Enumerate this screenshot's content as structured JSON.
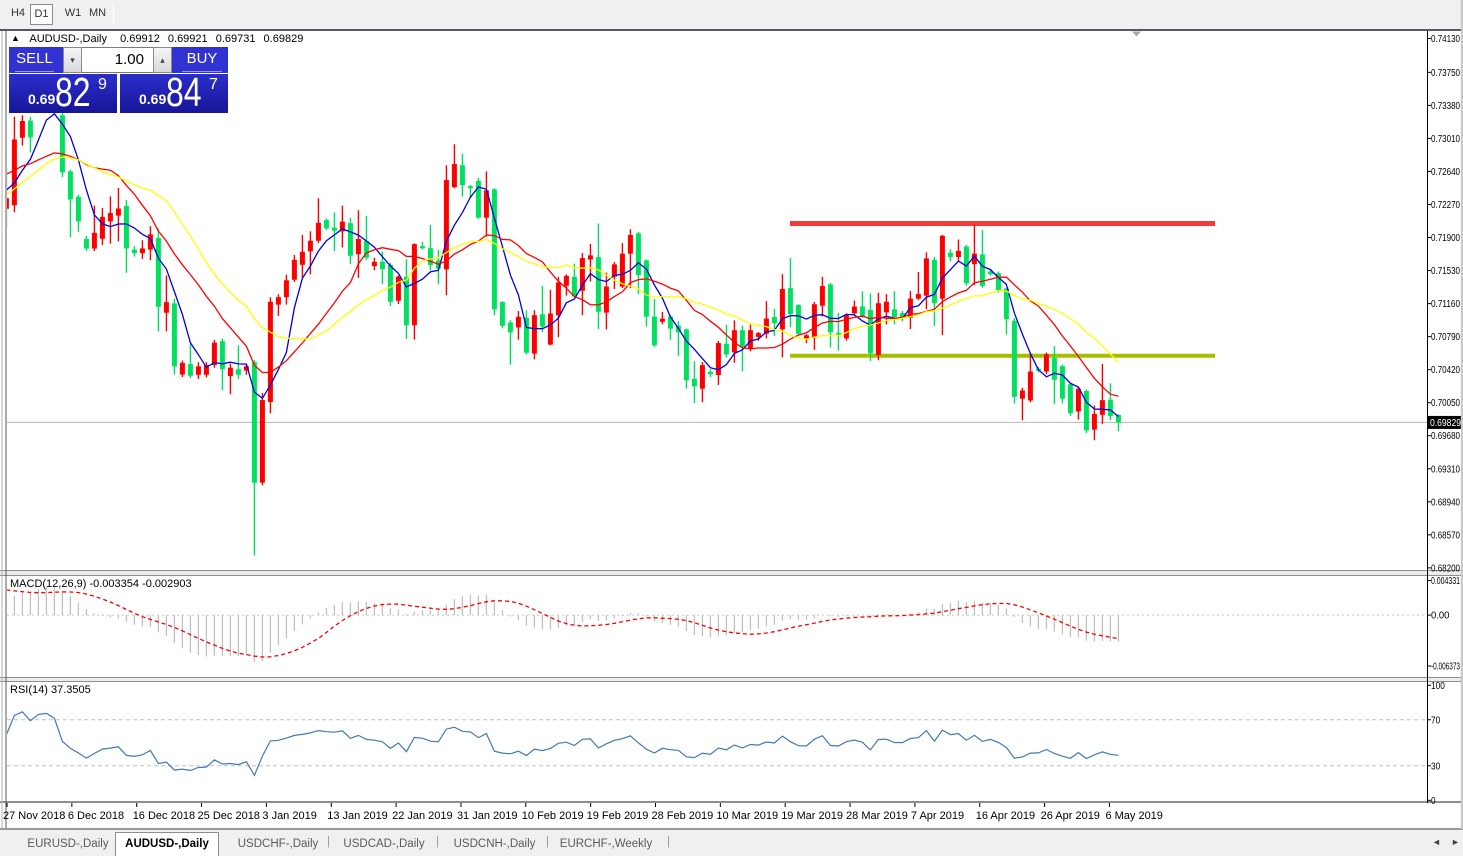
{
  "toolbar": {
    "periods": [
      "H4",
      "D1",
      "W1",
      "MN"
    ],
    "active_period": "D1"
  },
  "symbol_header": {
    "arrow": "▲",
    "title": "AUDUSD-,Daily",
    "open": "0.69912",
    "high": "0.69921",
    "low": "0.69731",
    "close": "0.69829"
  },
  "trade_panel": {
    "sell_label": "SELL",
    "buy_label": "BUY",
    "volume": "1.00",
    "volume_down_arrow": "▾",
    "volume_up_arrow": "▴",
    "sell_price_prefix": "0.69",
    "sell_price_big": "82",
    "sell_price_sup": "9",
    "buy_price_prefix": "0.69",
    "buy_price_big": "84",
    "buy_price_sup": "7"
  },
  "price_axis": {
    "ticks": [
      "0.74130",
      "0.73750",
      "0.73380",
      "0.73010",
      "0.72640",
      "0.72270",
      "0.71900",
      "0.71530",
      "0.71160",
      "0.70790",
      "0.70420",
      "0.70050",
      "0.69680",
      "0.69310",
      "0.68940",
      "0.68570",
      "0.68200"
    ],
    "current_price": "0.69829"
  },
  "date_axis": {
    "labels": [
      "27 Nov 2018",
      "6 Dec 2018",
      "16 Dec 2018",
      "25 Dec 2018",
      "3 Jan 2019",
      "13 Jan 2019",
      "22 Jan 2019",
      "31 Jan 2019",
      "10 Feb 2019",
      "19 Feb 2019",
      "28 Feb 2019",
      "10 Mar 2019",
      "19 Mar 2019",
      "28 Mar 2019",
      "7 Apr 2019",
      "16 Apr 2019",
      "26 Apr 2019",
      "6 May 2019"
    ]
  },
  "indicators": {
    "macd": {
      "label": "MACD(12,26,9)",
      "values": "-0.003354 -0.002903",
      "ticks": [
        "0.004331",
        "0.00",
        "-0.006373"
      ]
    },
    "rsi": {
      "label": "RSI(14)",
      "value": "37.3505",
      "ticks": [
        "100",
        "70",
        "30",
        "0"
      ]
    }
  },
  "tabs": {
    "items": [
      "EURUSD-,Daily",
      "AUDUSD-,Daily",
      "USDCHF-,Daily",
      "USDCAD-,Daily",
      "USDCNH-,Daily",
      "EURCHF-,Weekly"
    ],
    "active": "AUDUSD-,Daily",
    "separator": "|",
    "scroll_left": "◄",
    "scroll_right": "►"
  },
  "chart_data": {
    "type": "candlestick",
    "title": "AUDUSD-,Daily",
    "ohlc_columns": [
      "open",
      "high",
      "low",
      "close"
    ],
    "ohlc": [
      [
        0.72222,
        0.72684,
        0.72016,
        0.7234
      ],
      [
        0.72261,
        0.73253,
        0.72183,
        0.72998
      ],
      [
        0.73018,
        0.73268,
        0.7293,
        0.73205
      ],
      [
        0.7321,
        0.73253,
        0.72852,
        0.73022
      ],
      [
        0.7332,
        0.7342,
        0.7331,
        0.7339
      ],
      [
        0.7339,
        0.735,
        0.7336,
        0.7346
      ],
      [
        0.7346,
        0.735,
        0.7333,
        0.7335
      ],
      [
        0.73269,
        0.7335,
        0.72577,
        0.72631
      ],
      [
        0.72641,
        0.72661,
        0.71904,
        0.72326
      ],
      [
        0.72356,
        0.7238,
        0.71962,
        0.7208
      ],
      [
        0.71884,
        0.71917,
        0.71749,
        0.71776
      ],
      [
        0.71776,
        0.72258,
        0.71749,
        0.71953
      ],
      [
        0.71886,
        0.72232,
        0.71815,
        0.72131
      ],
      [
        0.72081,
        0.72361,
        0.71831,
        0.72174
      ],
      [
        0.72145,
        0.72456,
        0.71857,
        0.72225
      ],
      [
        0.72253,
        0.7232,
        0.71504,
        0.71778
      ],
      [
        0.71765,
        0.71804,
        0.71686,
        0.71725
      ],
      [
        0.71725,
        0.7187,
        0.7166,
        0.71778
      ],
      [
        0.71765,
        0.72027,
        0.71646,
        0.71935
      ],
      [
        0.71896,
        0.72,
        0.70848,
        0.71124
      ],
      [
        0.71058,
        0.71477,
        0.70848,
        0.71176
      ],
      [
        0.71163,
        0.71216,
        0.70365,
        0.70457
      ],
      [
        0.70365,
        0.70522,
        0.70338,
        0.70496
      ],
      [
        0.70482,
        0.70705,
        0.70327,
        0.70351
      ],
      [
        0.70363,
        0.70504,
        0.70316,
        0.70457
      ],
      [
        0.70363,
        0.70504,
        0.70332,
        0.70472
      ],
      [
        0.70472,
        0.70752,
        0.70442,
        0.70723
      ],
      [
        0.70739,
        0.7077,
        0.70191,
        0.70425
      ],
      [
        0.70348,
        0.70489,
        0.70144,
        0.70442
      ],
      [
        0.70425,
        0.70692,
        0.70316,
        0.70363
      ],
      [
        0.7041,
        0.70488,
        0.70363,
        0.70457
      ],
      [
        0.70504,
        0.70529,
        0.68338,
        0.69155
      ],
      [
        0.69155,
        0.70159,
        0.69124,
        0.7008
      ],
      [
        0.70058,
        0.71232,
        0.69931,
        0.7118
      ],
      [
        0.71149,
        0.71264,
        0.71022,
        0.71232
      ],
      [
        0.71232,
        0.71484,
        0.71149,
        0.71421
      ],
      [
        0.71427,
        0.71705,
        0.71402,
        0.71651
      ],
      [
        0.71594,
        0.71928,
        0.71444,
        0.7174
      ],
      [
        0.71746,
        0.7197,
        0.71487,
        0.71864
      ],
      [
        0.71864,
        0.7234,
        0.71838,
        0.72064
      ],
      [
        0.72096,
        0.72113,
        0.71984,
        0.72002
      ],
      [
        0.72011,
        0.72182,
        0.71747,
        0.71977
      ],
      [
        0.71969,
        0.72257,
        0.71789,
        0.72078
      ],
      [
        0.72061,
        0.7212,
        0.71602,
        0.71696
      ],
      [
        0.71713,
        0.72206,
        0.71449,
        0.71883
      ],
      [
        0.71862,
        0.72144,
        0.7165,
        0.71674
      ],
      [
        0.7158,
        0.71674,
        0.71533,
        0.71628
      ],
      [
        0.71628,
        0.71745,
        0.71379,
        0.71545
      ],
      [
        0.71592,
        0.71615,
        0.71133,
        0.7118
      ],
      [
        0.71192,
        0.71474,
        0.71156,
        0.71463
      ],
      [
        0.71461,
        0.71656,
        0.70765,
        0.70917
      ],
      [
        0.70917,
        0.71835,
        0.70756,
        0.71826
      ],
      [
        0.71804,
        0.71854,
        0.71764,
        0.7178
      ],
      [
        0.71781,
        0.7204,
        0.71529,
        0.7159
      ],
      [
        0.71642,
        0.7176,
        0.71376,
        0.71553
      ],
      [
        0.71543,
        0.72709,
        0.71254,
        0.72544
      ],
      [
        0.72464,
        0.72945,
        0.72452,
        0.72723
      ],
      [
        0.7271,
        0.7284,
        0.72357,
        0.72487
      ],
      [
        0.72475,
        0.72488,
        0.72345,
        0.72452
      ],
      [
        0.72534,
        0.72569,
        0.7211,
        0.72122
      ],
      [
        0.72122,
        0.7264,
        0.71909,
        0.72428
      ],
      [
        0.7244,
        0.72452,
        0.7103,
        0.71095
      ],
      [
        0.71177,
        0.71186,
        0.70884,
        0.70911
      ],
      [
        0.70948,
        0.70975,
        0.70475,
        0.70838
      ],
      [
        0.70893,
        0.71076,
        0.70756,
        0.71012
      ],
      [
        0.71003,
        0.71085,
        0.70591,
        0.7061
      ],
      [
        0.706,
        0.71085,
        0.70536,
        0.7103
      ],
      [
        0.7104,
        0.71359,
        0.70838,
        0.70902
      ],
      [
        0.70701,
        0.71313,
        0.70692,
        0.71049
      ],
      [
        0.7103,
        0.7146,
        0.70784,
        0.71396
      ],
      [
        0.71359,
        0.71488,
        0.71249,
        0.7147
      ],
      [
        0.7146,
        0.71607,
        0.71231,
        0.7124
      ],
      [
        0.71304,
        0.71725,
        0.7103,
        0.7167
      ],
      [
        0.71654,
        0.71829,
        0.71407,
        0.717
      ],
      [
        0.71681,
        0.72057,
        0.70874,
        0.71068
      ],
      [
        0.71059,
        0.71507,
        0.7087,
        0.71351
      ],
      [
        0.71461,
        0.71625,
        0.71323,
        0.71599
      ],
      [
        0.71351,
        0.71837,
        0.71333,
        0.71719
      ],
      [
        0.71719,
        0.71993,
        0.71333,
        0.71929
      ],
      [
        0.71947,
        0.71965,
        0.71266,
        0.7148
      ],
      [
        0.71644,
        0.71654,
        0.70903,
        0.71013
      ],
      [
        0.71015,
        0.71211,
        0.70675,
        0.70693
      ],
      [
        0.70956,
        0.71067,
        0.7093,
        0.7099
      ],
      [
        0.71015,
        0.71032,
        0.70753,
        0.7088
      ],
      [
        0.70913,
        0.70965,
        0.70574,
        0.70837
      ],
      [
        0.70871,
        0.7088,
        0.70207,
        0.70301
      ],
      [
        0.70318,
        0.70514,
        0.70046,
        0.70233
      ],
      [
        0.70207,
        0.70505,
        0.70055,
        0.70471
      ],
      [
        0.70395,
        0.70429,
        0.70334,
        0.70369
      ],
      [
        0.7036,
        0.70741,
        0.70249,
        0.70718
      ],
      [
        0.7071,
        0.70922,
        0.70556,
        0.7059
      ],
      [
        0.70614,
        0.70973,
        0.70497,
        0.70862
      ],
      [
        0.70862,
        0.70913,
        0.70403,
        0.70675
      ],
      [
        0.70658,
        0.70939,
        0.70625,
        0.70862
      ],
      [
        0.70787,
        0.70842,
        0.70744,
        0.7083
      ],
      [
        0.70822,
        0.71187,
        0.7077,
        0.70992
      ],
      [
        0.71009,
        0.71102,
        0.70796,
        0.7094
      ],
      [
        0.70872,
        0.7149,
        0.70557,
        0.71323
      ],
      [
        0.71334,
        0.7167,
        0.70898,
        0.71042
      ],
      [
        0.71144,
        0.71153,
        0.70805,
        0.70822
      ],
      [
        0.70761,
        0.70819,
        0.70717,
        0.70805
      ],
      [
        0.7078,
        0.71179,
        0.70642,
        0.71153
      ],
      [
        0.71136,
        0.7146,
        0.71016,
        0.71356
      ],
      [
        0.71375,
        0.71392,
        0.70668,
        0.70838
      ],
      [
        0.7083,
        0.71059,
        0.70634,
        0.70813
      ],
      [
        0.7077,
        0.71051,
        0.70744,
        0.71035
      ],
      [
        0.71051,
        0.71195,
        0.71025,
        0.71127
      ],
      [
        0.71128,
        0.71298,
        0.70999,
        0.71018
      ],
      [
        0.71088,
        0.71273,
        0.70518,
        0.70603
      ],
      [
        0.70585,
        0.71282,
        0.70526,
        0.71164
      ],
      [
        0.71062,
        0.71266,
        0.70926,
        0.71181
      ],
      [
        0.71096,
        0.71298,
        0.70926,
        0.7101
      ],
      [
        0.71053,
        0.71077,
        0.70961,
        0.71002
      ],
      [
        0.71002,
        0.71301,
        0.70875,
        0.71216
      ],
      [
        0.71216,
        0.71514,
        0.71198,
        0.71266
      ],
      [
        0.71249,
        0.71734,
        0.71096,
        0.71666
      ],
      [
        0.7165,
        0.71684,
        0.70909,
        0.71164
      ],
      [
        0.71216,
        0.7193,
        0.70807,
        0.7192
      ],
      [
        0.7173,
        0.71769,
        0.71633,
        0.71682
      ],
      [
        0.71682,
        0.71878,
        0.71633,
        0.7175
      ],
      [
        0.71799,
        0.71818,
        0.71358,
        0.71387
      ],
      [
        0.71602,
        0.72043,
        0.71367,
        0.7172
      ],
      [
        0.71711,
        0.71985,
        0.71338,
        0.71357
      ],
      [
        0.71519,
        0.71538,
        0.71471,
        0.7149
      ],
      [
        0.715,
        0.71519,
        0.71284,
        0.71313
      ],
      [
        0.71328,
        0.71338,
        0.70814,
        0.70987
      ],
      [
        0.70967,
        0.70997,
        0.70044,
        0.70115
      ],
      [
        0.70095,
        0.70217,
        0.69852,
        0.70187
      ],
      [
        0.70075,
        0.70612,
        0.70054,
        0.70399
      ],
      [
        0.7043,
        0.7045,
        0.70389,
        0.7041
      ],
      [
        0.70399,
        0.70612,
        0.70369,
        0.70592
      ],
      [
        0.70552,
        0.70683,
        0.70034,
        0.70306
      ],
      [
        0.7046,
        0.7048,
        0.70044,
        0.70095
      ],
      [
        0.70257,
        0.70277,
        0.69902,
        0.69932
      ],
      [
        0.69952,
        0.70226,
        0.69861,
        0.70206
      ],
      [
        0.70181,
        0.702,
        0.6971,
        0.6974
      ],
      [
        0.69748,
        0.70019,
        0.6963,
        0.69925
      ],
      [
        0.69914,
        0.70485,
        0.69813,
        0.70078
      ],
      [
        0.70084,
        0.70266,
        0.69854,
        0.69901
      ],
      [
        0.69912,
        0.69921,
        0.69731,
        0.69829
      ]
    ],
    "pre_closes": [
      0.71422,
      0.71422,
      0.71422,
      0.71422,
      0.71422,
      0.71422,
      0.71422,
      0.71422,
      0.71422,
      0.71422,
      0.71549,
      0.71676,
      0.71804,
      0.71931,
      0.72058,
      0.72186,
      0.72313,
      0.7244,
      0.72568,
      0.72695,
      0.72822,
      0.7295,
      0.72859,
      0.72769,
      0.72679,
      0.72588,
      0.72498,
      0.72407,
      0.72317
    ],
    "bull_color": "#FF0000",
    "bear_color": "#00E15F",
    "moving_averages": [
      {
        "period": 5,
        "color": "#0000E1"
      },
      {
        "period": 13,
        "color": "#FF0000"
      },
      {
        "period": 20,
        "color": "#FFFF00"
      }
    ],
    "levels": [
      {
        "price": 0.72057,
        "color": "#F23B3B",
        "thickness": 5
      },
      {
        "price": 0.70576,
        "color": "#A4BE00",
        "thickness": 4
      }
    ],
    "y_ticks": [
      0.7413,
      0.7375,
      0.7338,
      0.7301,
      0.7264,
      0.7227,
      0.719,
      0.7153,
      0.7116,
      0.7079,
      0.7042,
      0.7005,
      0.6968,
      0.6931,
      0.6894,
      0.6857,
      0.682
    ],
    "y_range_top": 0.7413,
    "y_range_bottom": 0.682,
    "current_price": 0.69829,
    "macd": {
      "fast": 12,
      "slow": 26,
      "signal": 9,
      "histogram_color": "#C0C0C0",
      "signal_color": "#FF0000",
      "ticks": [
        0.004331,
        0.0,
        -0.006373
      ]
    },
    "rsi": {
      "period": 14,
      "color": "#4279B4",
      "levels": [
        30,
        70
      ],
      "ticks": [
        100,
        70,
        30,
        0
      ],
      "last_value": 37.3505
    }
  }
}
